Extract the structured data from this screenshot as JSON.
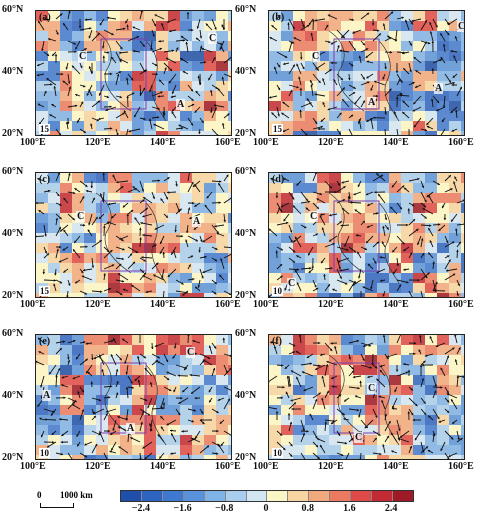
{
  "panels": [
    {
      "label": "(a)",
      "day": "15",
      "ca": [
        "C",
        "C",
        "A"
      ]
    },
    {
      "label": "(b)",
      "day": "15",
      "ca": [
        "C",
        "C",
        "A",
        "A"
      ]
    },
    {
      "label": "(c)",
      "day": "15",
      "ca": [
        "C",
        "A"
      ]
    },
    {
      "label": "(d)",
      "day": "10",
      "ca": [
        "C",
        "C"
      ]
    },
    {
      "label": "(e)",
      "day": "10",
      "ca": [
        "A",
        "C",
        "A"
      ]
    },
    {
      "label": "(f)",
      "day": "10",
      "ca": [
        "C",
        "C"
      ]
    }
  ],
  "axes": {
    "lat_labels": [
      "60°N",
      "40°N",
      "20°N"
    ],
    "lon_labels": [
      "100°E",
      "120°E",
      "140°E",
      "160°E"
    ]
  },
  "colorbar": {
    "ticks": [
      "−2.4",
      "−1.6",
      "−0.8",
      "0",
      "0.8",
      "1.6",
      "2.4"
    ],
    "colors": [
      "#1f4fa8",
      "#2f63c0",
      "#3f78cf",
      "#5a93db",
      "#7fb2e6",
      "#a9cdee",
      "#d3e6f4",
      "#fbf6c6",
      "#f7d4a1",
      "#f2a87d",
      "#ea7a60",
      "#de4a47",
      "#c22a34",
      "#9d1a26"
    ]
  },
  "scale": {
    "zero": "0",
    "distance": "1000 km"
  }
}
